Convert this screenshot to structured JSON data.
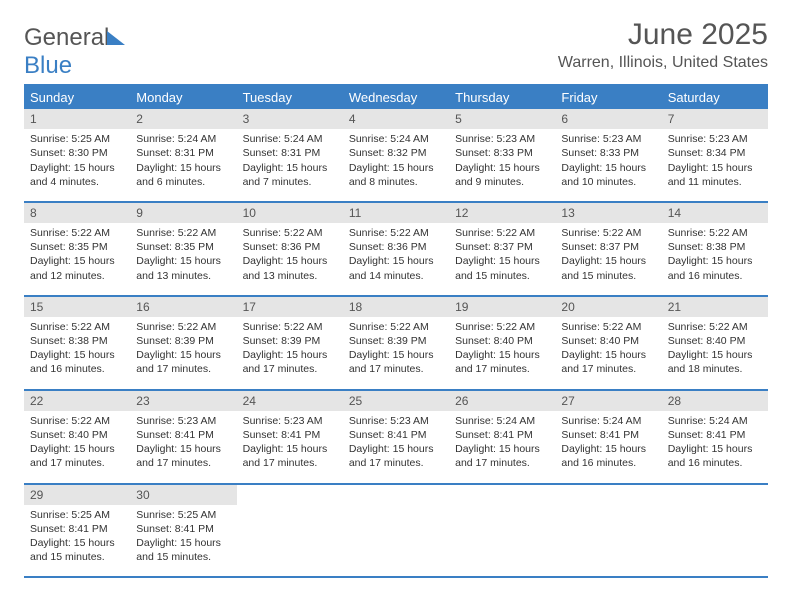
{
  "brand": {
    "part1": "General",
    "part2": "Blue"
  },
  "title": "June 2025",
  "location": "Warren, Illinois, United States",
  "colors": {
    "accent": "#3a7fc4",
    "date_bg": "#e5e5e5",
    "text": "#333333",
    "muted": "#555555",
    "bg": "#ffffff"
  },
  "typography": {
    "title_fontsize": 30,
    "location_fontsize": 16,
    "header_fontsize": 13,
    "date_fontsize": 12,
    "body_fontsize": 10.5
  },
  "day_headers": [
    "Sunday",
    "Monday",
    "Tuesday",
    "Wednesday",
    "Thursday",
    "Friday",
    "Saturday"
  ],
  "weeks": [
    [
      {
        "date": "1",
        "sunrise": "5:25 AM",
        "sunset": "8:30 PM",
        "daylight": "15 hours and 4 minutes."
      },
      {
        "date": "2",
        "sunrise": "5:24 AM",
        "sunset": "8:31 PM",
        "daylight": "15 hours and 6 minutes."
      },
      {
        "date": "3",
        "sunrise": "5:24 AM",
        "sunset": "8:31 PM",
        "daylight": "15 hours and 7 minutes."
      },
      {
        "date": "4",
        "sunrise": "5:24 AM",
        "sunset": "8:32 PM",
        "daylight": "15 hours and 8 minutes."
      },
      {
        "date": "5",
        "sunrise": "5:23 AM",
        "sunset": "8:33 PM",
        "daylight": "15 hours and 9 minutes."
      },
      {
        "date": "6",
        "sunrise": "5:23 AM",
        "sunset": "8:33 PM",
        "daylight": "15 hours and 10 minutes."
      },
      {
        "date": "7",
        "sunrise": "5:23 AM",
        "sunset": "8:34 PM",
        "daylight": "15 hours and 11 minutes."
      }
    ],
    [
      {
        "date": "8",
        "sunrise": "5:22 AM",
        "sunset": "8:35 PM",
        "daylight": "15 hours and 12 minutes."
      },
      {
        "date": "9",
        "sunrise": "5:22 AM",
        "sunset": "8:35 PM",
        "daylight": "15 hours and 13 minutes."
      },
      {
        "date": "10",
        "sunrise": "5:22 AM",
        "sunset": "8:36 PM",
        "daylight": "15 hours and 13 minutes."
      },
      {
        "date": "11",
        "sunrise": "5:22 AM",
        "sunset": "8:36 PM",
        "daylight": "15 hours and 14 minutes."
      },
      {
        "date": "12",
        "sunrise": "5:22 AM",
        "sunset": "8:37 PM",
        "daylight": "15 hours and 15 minutes."
      },
      {
        "date": "13",
        "sunrise": "5:22 AM",
        "sunset": "8:37 PM",
        "daylight": "15 hours and 15 minutes."
      },
      {
        "date": "14",
        "sunrise": "5:22 AM",
        "sunset": "8:38 PM",
        "daylight": "15 hours and 16 minutes."
      }
    ],
    [
      {
        "date": "15",
        "sunrise": "5:22 AM",
        "sunset": "8:38 PM",
        "daylight": "15 hours and 16 minutes."
      },
      {
        "date": "16",
        "sunrise": "5:22 AM",
        "sunset": "8:39 PM",
        "daylight": "15 hours and 17 minutes."
      },
      {
        "date": "17",
        "sunrise": "5:22 AM",
        "sunset": "8:39 PM",
        "daylight": "15 hours and 17 minutes."
      },
      {
        "date": "18",
        "sunrise": "5:22 AM",
        "sunset": "8:39 PM",
        "daylight": "15 hours and 17 minutes."
      },
      {
        "date": "19",
        "sunrise": "5:22 AM",
        "sunset": "8:40 PM",
        "daylight": "15 hours and 17 minutes."
      },
      {
        "date": "20",
        "sunrise": "5:22 AM",
        "sunset": "8:40 PM",
        "daylight": "15 hours and 17 minutes."
      },
      {
        "date": "21",
        "sunrise": "5:22 AM",
        "sunset": "8:40 PM",
        "daylight": "15 hours and 18 minutes."
      }
    ],
    [
      {
        "date": "22",
        "sunrise": "5:22 AM",
        "sunset": "8:40 PM",
        "daylight": "15 hours and 17 minutes."
      },
      {
        "date": "23",
        "sunrise": "5:23 AM",
        "sunset": "8:41 PM",
        "daylight": "15 hours and 17 minutes."
      },
      {
        "date": "24",
        "sunrise": "5:23 AM",
        "sunset": "8:41 PM",
        "daylight": "15 hours and 17 minutes."
      },
      {
        "date": "25",
        "sunrise": "5:23 AM",
        "sunset": "8:41 PM",
        "daylight": "15 hours and 17 minutes."
      },
      {
        "date": "26",
        "sunrise": "5:24 AM",
        "sunset": "8:41 PM",
        "daylight": "15 hours and 17 minutes."
      },
      {
        "date": "27",
        "sunrise": "5:24 AM",
        "sunset": "8:41 PM",
        "daylight": "15 hours and 16 minutes."
      },
      {
        "date": "28",
        "sunrise": "5:24 AM",
        "sunset": "8:41 PM",
        "daylight": "15 hours and 16 minutes."
      }
    ],
    [
      {
        "date": "29",
        "sunrise": "5:25 AM",
        "sunset": "8:41 PM",
        "daylight": "15 hours and 15 minutes."
      },
      {
        "date": "30",
        "sunrise": "5:25 AM",
        "sunset": "8:41 PM",
        "daylight": "15 hours and 15 minutes."
      },
      null,
      null,
      null,
      null,
      null
    ]
  ],
  "labels": {
    "sunrise_prefix": "Sunrise: ",
    "sunset_prefix": "Sunset: ",
    "daylight_prefix": "Daylight: "
  }
}
